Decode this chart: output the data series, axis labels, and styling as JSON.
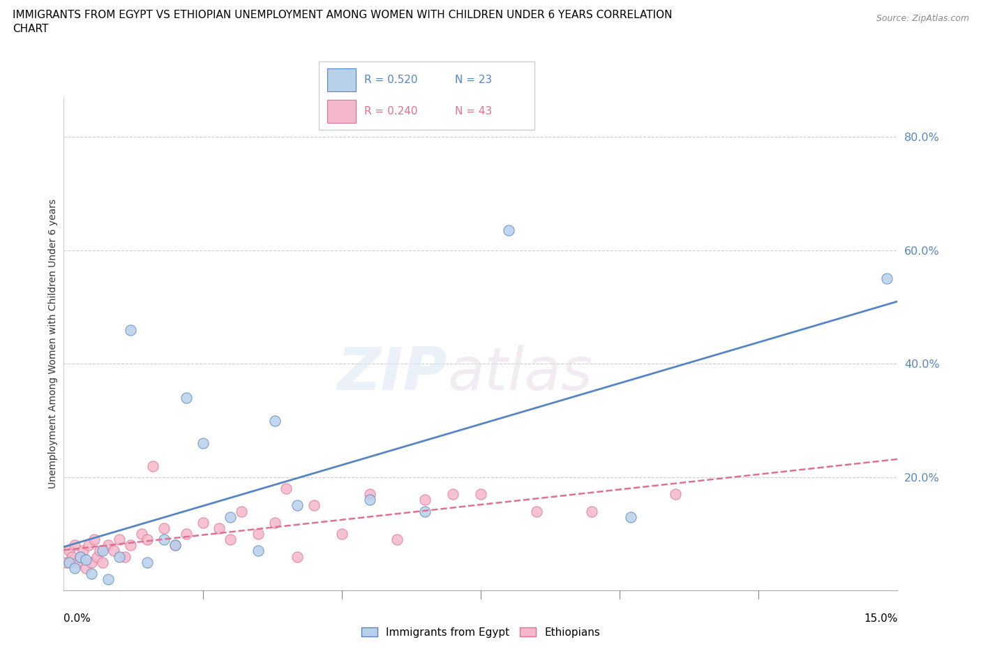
{
  "title_line1": "IMMIGRANTS FROM EGYPT VS ETHIOPIAN UNEMPLOYMENT AMONG WOMEN WITH CHILDREN UNDER 6 YEARS CORRELATION",
  "title_line2": "CHART",
  "source": "Source: ZipAtlas.com",
  "xlabel_bottom_left": "0.0%",
  "xlabel_bottom_right": "15.0%",
  "ylabel": "Unemployment Among Women with Children Under 6 years",
  "x_min": 0.0,
  "x_max": 15.0,
  "y_min": 0.0,
  "y_max": 87.0,
  "y_ticks": [
    20.0,
    40.0,
    60.0,
    80.0
  ],
  "x_ticks": [
    2.5,
    5.0,
    7.5,
    10.0,
    12.5
  ],
  "legend_r1": "R = 0.520",
  "legend_n1": "N = 23",
  "legend_r2": "R = 0.240",
  "legend_n2": "N = 43",
  "color_egypt": "#b8d0ea",
  "color_egypt_line": "#5585c5",
  "color_ethiopia": "#f5b8cb",
  "color_ethiopia_line": "#e07090",
  "egypt_x": [
    0.1,
    0.2,
    0.3,
    0.4,
    0.5,
    0.7,
    0.8,
    1.0,
    1.2,
    1.5,
    1.8,
    2.0,
    2.2,
    2.5,
    3.0,
    3.5,
    4.2,
    5.5,
    6.5,
    8.0,
    10.2,
    14.8,
    3.8
  ],
  "egypt_y": [
    5.0,
    4.0,
    6.0,
    5.5,
    3.0,
    7.0,
    2.0,
    6.0,
    46.0,
    5.0,
    9.0,
    8.0,
    34.0,
    26.0,
    13.0,
    7.0,
    15.0,
    16.0,
    14.0,
    63.5,
    13.0,
    55.0,
    30.0
  ],
  "ethiopia_x": [
    0.05,
    0.1,
    0.15,
    0.2,
    0.25,
    0.3,
    0.35,
    0.4,
    0.45,
    0.5,
    0.55,
    0.6,
    0.65,
    0.7,
    0.8,
    0.9,
    1.0,
    1.1,
    1.2,
    1.4,
    1.5,
    1.6,
    1.8,
    2.0,
    2.2,
    2.5,
    2.8,
    3.0,
    3.2,
    3.5,
    3.8,
    4.0,
    4.5,
    5.0,
    5.5,
    6.0,
    6.5,
    7.0,
    7.5,
    8.5,
    9.5,
    11.0,
    4.2
  ],
  "ethiopia_y": [
    5.0,
    7.0,
    6.0,
    8.0,
    5.0,
    6.0,
    7.0,
    4.0,
    8.0,
    5.0,
    9.0,
    6.0,
    7.0,
    5.0,
    8.0,
    7.0,
    9.0,
    6.0,
    8.0,
    10.0,
    9.0,
    22.0,
    11.0,
    8.0,
    10.0,
    12.0,
    11.0,
    9.0,
    14.0,
    10.0,
    12.0,
    18.0,
    15.0,
    10.0,
    17.0,
    9.0,
    16.0,
    17.0,
    17.0,
    14.0,
    14.0,
    17.0,
    6.0
  ]
}
